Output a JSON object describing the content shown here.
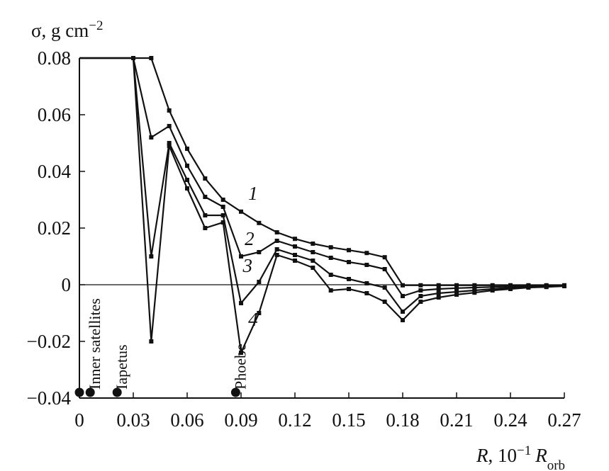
{
  "chart_data": {
    "type": "line",
    "ylabel_parts": {
      "symbol": "σ, g cm",
      "exp": "−2"
    },
    "xlabel_parts": {
      "var": "R",
      "mid": ", 10",
      "exp": "−1",
      "unit": "R",
      "sub": "orb"
    },
    "xlim": [
      0,
      0.27
    ],
    "ylim": [
      -0.04,
      0.08
    ],
    "x_ticks": [
      0,
      0.03,
      0.06,
      0.09,
      0.12,
      0.15,
      0.18,
      0.21,
      0.24,
      0.27
    ],
    "x_tick_labels": [
      "0",
      "0.03",
      "0.06",
      "0.09",
      "0.12",
      "0.15",
      "0.18",
      "0.21",
      "0.24",
      "0.27"
    ],
    "y_ticks": [
      0.08,
      0.06,
      0.04,
      0.02,
      0,
      -0.02,
      -0.04
    ],
    "y_tick_labels": [
      "0.08",
      "0.06",
      "0.04",
      "0.02",
      "0",
      "−0.02",
      "−0.04"
    ],
    "zero_line": true,
    "grid": false,
    "series": [
      {
        "name": "1",
        "label_xy": [
          0.094,
          0.03
        ],
        "points": [
          [
            0,
            0.08
          ],
          [
            0.04,
            0.08
          ],
          [
            0.05,
            0.0615
          ],
          [
            0.06,
            0.048
          ],
          [
            0.07,
            0.0375
          ],
          [
            0.08,
            0.03
          ],
          [
            0.09,
            0.0258
          ],
          [
            0.1,
            0.0218
          ],
          [
            0.11,
            0.0185
          ],
          [
            0.12,
            0.0162
          ],
          [
            0.13,
            0.0145
          ],
          [
            0.14,
            0.0132
          ],
          [
            0.15,
            0.0122
          ],
          [
            0.16,
            0.0112
          ],
          [
            0.17,
            0.0097
          ],
          [
            0.18,
            -0.0002
          ],
          [
            0.19,
            -0.0002
          ],
          [
            0.2,
            -0.0002
          ],
          [
            0.21,
            -0.0002
          ],
          [
            0.22,
            -0.0002
          ],
          [
            0.23,
            -0.0002
          ],
          [
            0.24,
            -0.0002
          ],
          [
            0.25,
            -0.0002
          ],
          [
            0.26,
            -0.0002
          ],
          [
            0.27,
            -0.0002
          ]
        ]
      },
      {
        "name": "2",
        "label_xy": [
          0.092,
          0.014
        ],
        "points": [
          [
            0,
            0.08
          ],
          [
            0.03,
            0.08
          ],
          [
            0.04,
            0.052
          ],
          [
            0.05,
            0.056
          ],
          [
            0.06,
            0.042
          ],
          [
            0.07,
            0.031
          ],
          [
            0.08,
            0.0275
          ],
          [
            0.09,
            0.01
          ],
          [
            0.1,
            0.0115
          ],
          [
            0.11,
            0.0155
          ],
          [
            0.12,
            0.0135
          ],
          [
            0.13,
            0.0115
          ],
          [
            0.14,
            0.0095
          ],
          [
            0.15,
            0.008
          ],
          [
            0.16,
            0.007
          ],
          [
            0.17,
            0.0055
          ],
          [
            0.18,
            -0.004
          ],
          [
            0.19,
            -0.002
          ],
          [
            0.2,
            -0.0015
          ],
          [
            0.21,
            -0.0012
          ],
          [
            0.22,
            -0.001
          ],
          [
            0.23,
            -0.0008
          ],
          [
            0.24,
            -0.0006
          ],
          [
            0.25,
            -0.0005
          ],
          [
            0.26,
            -0.0004
          ],
          [
            0.27,
            -0.0003
          ]
        ]
      },
      {
        "name": "3",
        "label_xy": [
          0.091,
          0.0045
        ],
        "points": [
          [
            0,
            0.08
          ],
          [
            0.03,
            0.08
          ],
          [
            0.04,
            0.01
          ],
          [
            0.05,
            0.05
          ],
          [
            0.06,
            0.037
          ],
          [
            0.07,
            0.0245
          ],
          [
            0.08,
            0.0245
          ],
          [
            0.09,
            -0.0065
          ],
          [
            0.1,
            0.001
          ],
          [
            0.11,
            0.0125
          ],
          [
            0.12,
            0.0105
          ],
          [
            0.13,
            0.0085
          ],
          [
            0.14,
            0.0035
          ],
          [
            0.15,
            0.002
          ],
          [
            0.16,
            0.0005
          ],
          [
            0.17,
            -0.001
          ],
          [
            0.18,
            -0.0095
          ],
          [
            0.19,
            -0.004
          ],
          [
            0.2,
            -0.003
          ],
          [
            0.21,
            -0.0025
          ],
          [
            0.22,
            -0.002
          ],
          [
            0.23,
            -0.0015
          ],
          [
            0.24,
            -0.001
          ],
          [
            0.25,
            -0.0008
          ],
          [
            0.26,
            -0.0006
          ],
          [
            0.27,
            -0.0004
          ]
        ]
      },
      {
        "name": "4",
        "label_xy": [
          0.094,
          -0.0145
        ],
        "points": [
          [
            0,
            0.08
          ],
          [
            0.03,
            0.08
          ],
          [
            0.04,
            -0.02
          ],
          [
            0.05,
            0.049
          ],
          [
            0.06,
            0.034
          ],
          [
            0.07,
            0.02
          ],
          [
            0.08,
            0.022
          ],
          [
            0.09,
            -0.024
          ],
          [
            0.1,
            -0.01
          ],
          [
            0.11,
            0.0105
          ],
          [
            0.12,
            0.0085
          ],
          [
            0.13,
            0.006
          ],
          [
            0.14,
            -0.002
          ],
          [
            0.15,
            -0.0015
          ],
          [
            0.16,
            -0.003
          ],
          [
            0.17,
            -0.006
          ],
          [
            0.18,
            -0.0125
          ],
          [
            0.19,
            -0.006
          ],
          [
            0.2,
            -0.0045
          ],
          [
            0.21,
            -0.0035
          ],
          [
            0.22,
            -0.0028
          ],
          [
            0.23,
            -0.002
          ],
          [
            0.24,
            -0.0015
          ],
          [
            0.25,
            -0.001
          ],
          [
            0.26,
            -0.0008
          ],
          [
            0.27,
            -0.0005
          ]
        ]
      }
    ],
    "satellites": [
      {
        "label": "",
        "x": 0.0,
        "y": -0.038
      },
      {
        "label": "Inner satellites",
        "x": 0.006,
        "y": -0.038
      },
      {
        "label": "Iapetus",
        "x": 0.021,
        "y": -0.038
      },
      {
        "label": "Phoebe",
        "x": 0.087,
        "y": -0.038
      }
    ]
  }
}
